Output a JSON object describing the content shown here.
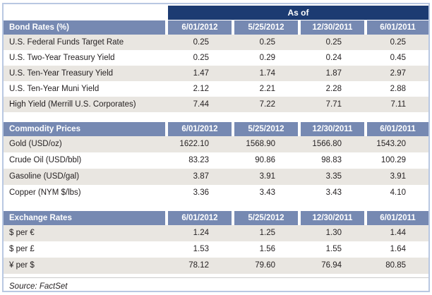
{
  "header": {
    "as_of_label": "As of"
  },
  "columns": [
    "6/01/2012",
    "5/25/2012",
    "12/30/2011",
    "6/01/2011"
  ],
  "sections": [
    {
      "title": "Bond Rates (%)",
      "rows": [
        {
          "label": "U.S. Federal Funds Target Rate",
          "values": [
            "0.25",
            "0.25",
            "0.25",
            "0.25"
          ]
        },
        {
          "label": "U.S. Two-Year Treasury Yield",
          "values": [
            "0.25",
            "0.29",
            "0.24",
            "0.45"
          ]
        },
        {
          "label": "U.S. Ten-Year Treasury Yield",
          "values": [
            "1.47",
            "1.74",
            "1.87",
            "2.97"
          ]
        },
        {
          "label": "U.S. Ten-Year Muni Yield",
          "values": [
            "2.12",
            "2.21",
            "2.28",
            "2.88"
          ]
        },
        {
          "label": "High Yield (Merrill U.S. Corporates)",
          "values": [
            "7.44",
            "7.22",
            "7.71",
            "7.11"
          ]
        }
      ]
    },
    {
      "title": "Commodity Prices",
      "rows": [
        {
          "label": "Gold (USD/oz)",
          "values": [
            "1622.10",
            "1568.90",
            "1566.80",
            "1543.20"
          ]
        },
        {
          "label": "Crude Oil (USD/bbl)",
          "values": [
            "83.23",
            "90.86",
            "98.83",
            "100.29"
          ]
        },
        {
          "label": "Gasoline (USD/gal)",
          "values": [
            "3.87",
            "3.91",
            "3.35",
            "3.91"
          ]
        },
        {
          "label": "Copper (NYM $/lbs)",
          "values": [
            "3.36",
            "3.43",
            "3.43",
            "4.10"
          ]
        }
      ]
    },
    {
      "title": "Exchange Rates",
      "rows": [
        {
          "label": "$ per €",
          "values": [
            "1.24",
            "1.25",
            "1.30",
            "1.44"
          ]
        },
        {
          "label": "$ per £",
          "values": [
            "1.53",
            "1.56",
            "1.55",
            "1.64"
          ]
        },
        {
          "label": "¥ per $",
          "values": [
            "78.12",
            "79.60",
            "76.94",
            "80.85"
          ]
        }
      ]
    }
  ],
  "footer": {
    "source": "Source: FactSet"
  },
  "colors": {
    "banner_navy": "#1C3B72",
    "header_blue": "#7689B2",
    "stripe_beige": "#E9E6E1",
    "outer_border": "#B9C8E2",
    "text": "#231F20"
  }
}
